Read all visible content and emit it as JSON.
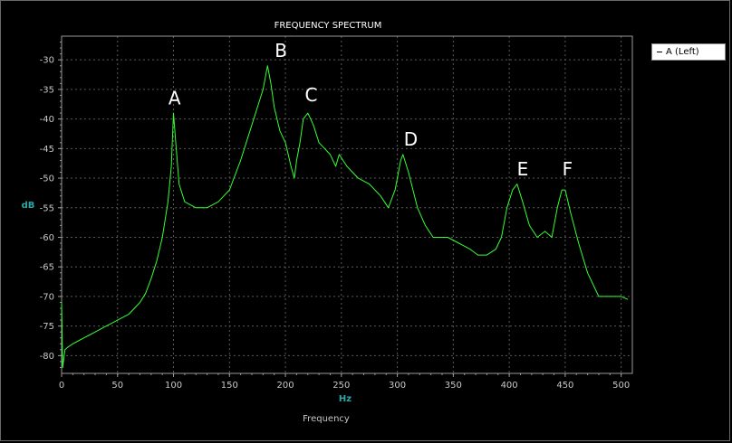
{
  "chart_data": {
    "type": "line",
    "title": "FREQUENCY SPECTRUM",
    "xlabel": "Hz",
    "ylabel": "dB",
    "footer_label": "Frequency",
    "xlim": [
      0,
      510
    ],
    "ylim": [
      -83,
      -26
    ],
    "x_ticks": [
      0,
      50,
      100,
      150,
      200,
      250,
      300,
      350,
      400,
      450,
      500
    ],
    "x_tick_labels": [
      "0",
      "50",
      "100",
      "150",
      "200",
      "250",
      "300",
      "350",
      "400",
      "450",
      "500"
    ],
    "y_ticks": [
      -30,
      -35,
      -40,
      -45,
      -50,
      -55,
      -60,
      -65,
      -70,
      -75,
      -80
    ],
    "y_tick_labels": [
      "-30",
      "-35",
      "-40",
      "-45",
      "-50",
      "-55",
      "-60",
      "-65",
      "-70",
      "-75",
      "-80"
    ],
    "grid": true,
    "legend_position": "right",
    "series": [
      {
        "name": "A (Left)",
        "color": "#33ff33",
        "points": [
          [
            0,
            -71
          ],
          [
            1,
            -82
          ],
          [
            3,
            -79
          ],
          [
            6,
            -78.5
          ],
          [
            10,
            -78
          ],
          [
            15,
            -77.5
          ],
          [
            20,
            -77
          ],
          [
            25,
            -76.5
          ],
          [
            30,
            -76
          ],
          [
            40,
            -75
          ],
          [
            50,
            -74
          ],
          [
            60,
            -73
          ],
          [
            70,
            -71
          ],
          [
            75,
            -69.5
          ],
          [
            80,
            -67
          ],
          [
            85,
            -64
          ],
          [
            90,
            -60
          ],
          [
            95,
            -54
          ],
          [
            98,
            -48
          ],
          [
            100,
            -39
          ],
          [
            102,
            -44
          ],
          [
            105,
            -51
          ],
          [
            110,
            -54
          ],
          [
            120,
            -55
          ],
          [
            130,
            -55
          ],
          [
            140,
            -54
          ],
          [
            150,
            -52
          ],
          [
            160,
            -47
          ],
          [
            170,
            -41
          ],
          [
            175,
            -38
          ],
          [
            180,
            -35
          ],
          [
            184,
            -31
          ],
          [
            187,
            -34
          ],
          [
            190,
            -38
          ],
          [
            195,
            -42
          ],
          [
            200,
            -44
          ],
          [
            205,
            -48
          ],
          [
            208,
            -50
          ],
          [
            210,
            -47
          ],
          [
            213,
            -44
          ],
          [
            216,
            -40
          ],
          [
            220,
            -39
          ],
          [
            225,
            -41
          ],
          [
            230,
            -44
          ],
          [
            240,
            -46
          ],
          [
            245,
            -48
          ],
          [
            248,
            -46
          ],
          [
            255,
            -48
          ],
          [
            265,
            -50
          ],
          [
            275,
            -51
          ],
          [
            285,
            -53
          ],
          [
            292,
            -55
          ],
          [
            298,
            -52
          ],
          [
            303,
            -47
          ],
          [
            305,
            -46
          ],
          [
            310,
            -49
          ],
          [
            318,
            -55
          ],
          [
            325,
            -58
          ],
          [
            332,
            -60
          ],
          [
            345,
            -60
          ],
          [
            355,
            -61
          ],
          [
            365,
            -62
          ],
          [
            372,
            -63
          ],
          [
            380,
            -63
          ],
          [
            388,
            -62
          ],
          [
            393,
            -60
          ],
          [
            398,
            -55
          ],
          [
            403,
            -52
          ],
          [
            407,
            -51
          ],
          [
            412,
            -54
          ],
          [
            418,
            -58
          ],
          [
            425,
            -60
          ],
          [
            432,
            -59
          ],
          [
            438,
            -60
          ],
          [
            443,
            -55
          ],
          [
            447,
            -52
          ],
          [
            450,
            -52
          ],
          [
            455,
            -56
          ],
          [
            462,
            -61
          ],
          [
            470,
            -66
          ],
          [
            480,
            -70
          ],
          [
            490,
            -70
          ],
          [
            500,
            -70
          ],
          [
            506,
            -70.5
          ]
        ]
      }
    ],
    "annotations": [
      {
        "text": "A",
        "x": 101,
        "y": -37.5
      },
      {
        "text": "B",
        "x": 196,
        "y": -29.5
      },
      {
        "text": "C",
        "x": 223,
        "y": -37
      },
      {
        "text": "D",
        "x": 312,
        "y": -44.5
      },
      {
        "text": "E",
        "x": 412,
        "y": -49.5
      },
      {
        "text": "F",
        "x": 452,
        "y": -49.5
      }
    ],
    "colors": {
      "background": "#000000",
      "plot_background": "#000000",
      "grid": "#5a5a5a",
      "axis": "#9a9a9a",
      "tick_text": "#c8c8c8",
      "title_text": "#ffffff",
      "axis_label": "#2aa8a8",
      "annotation": "#ffffff"
    }
  }
}
